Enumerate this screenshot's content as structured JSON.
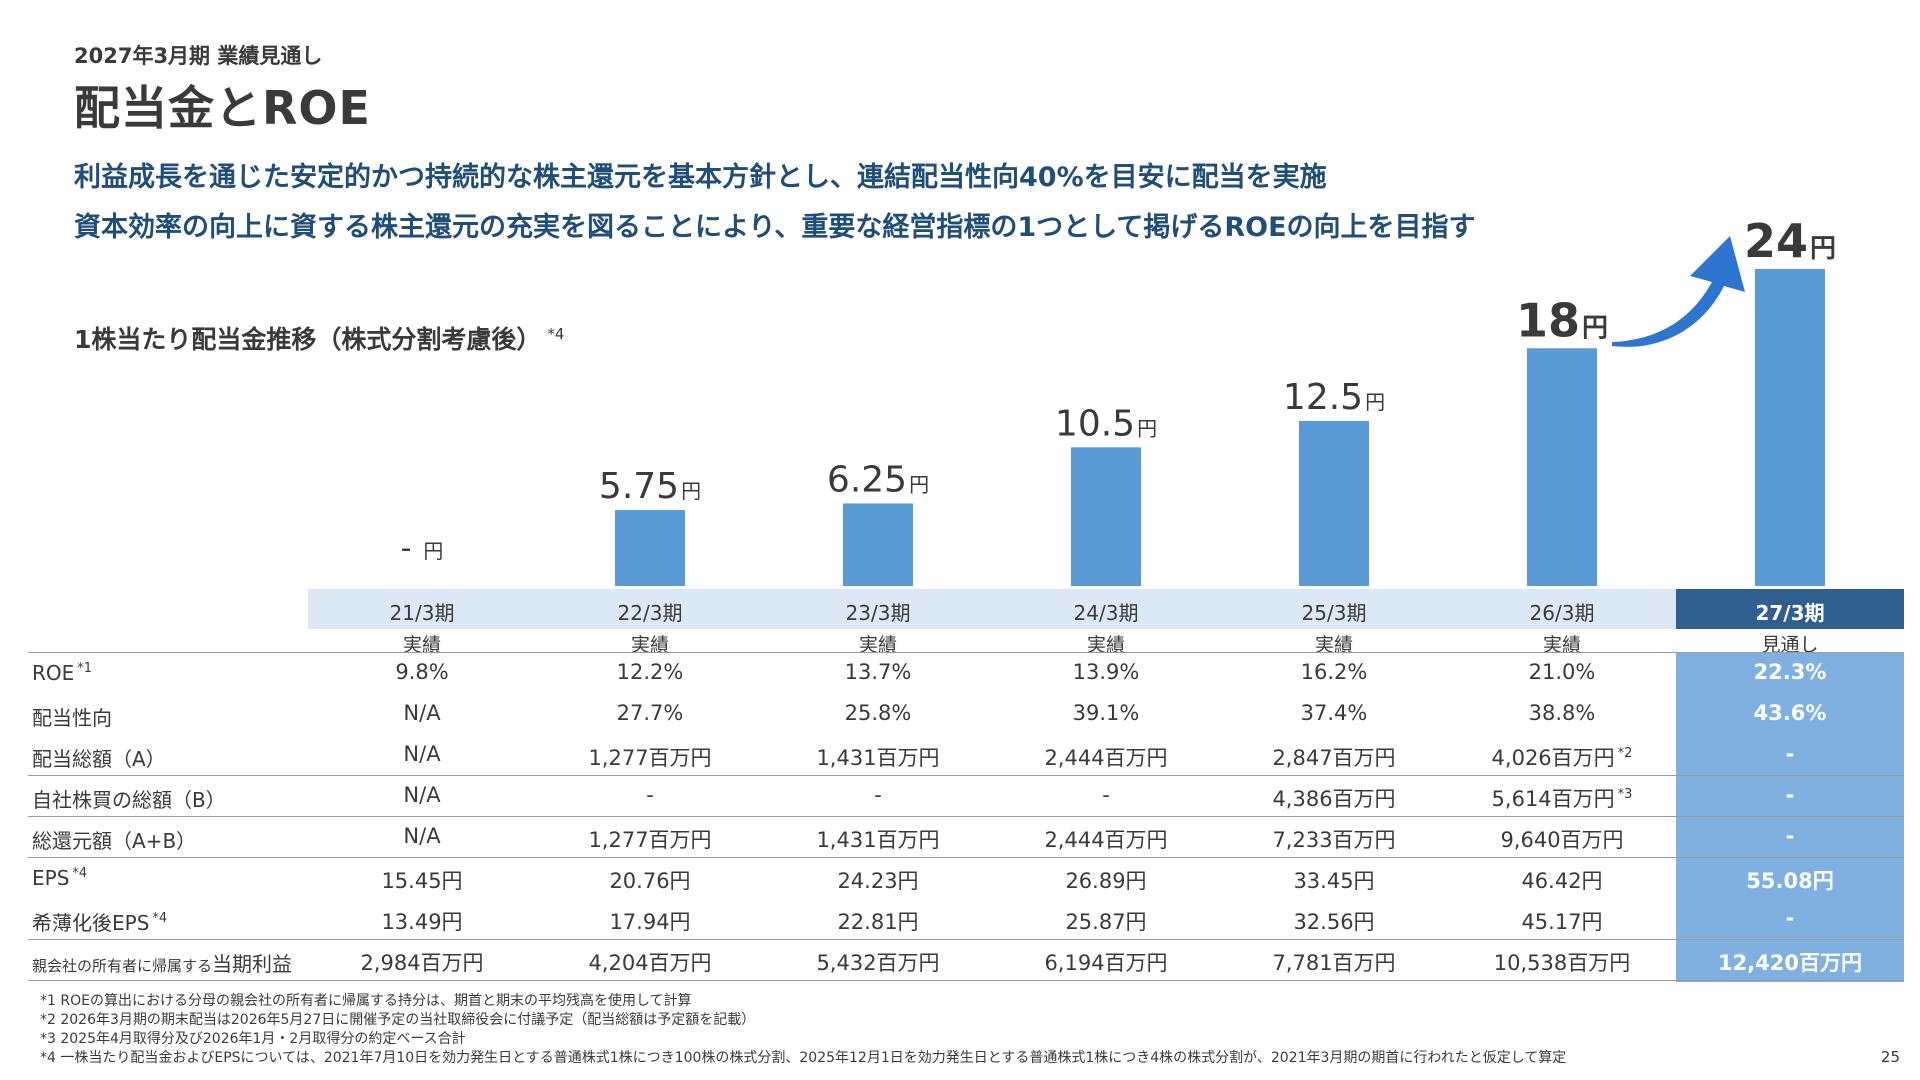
{
  "header": {
    "subtitle": "2027年3月期 業績見通し",
    "title": "配当金とROE",
    "lead1": "利益成長を通じた安定的かつ持続的な株主還元を基本方針とし、連結配当性向40%を目安に配当を実施",
    "lead2": "資本効率の向上に資する株主還元の充実を図ることにより、重要な経営指標の1つとして掲げるROEの向上を目指す"
  },
  "chart_data": {
    "type": "bar",
    "title": "1株当たり配当金推移（株式分割考慮後）",
    "title_note": "*4",
    "unit": "円",
    "categories": [
      "21/3期",
      "22/3期",
      "23/3期",
      "24/3期",
      "25/3期",
      "26/3期",
      "27/3期"
    ],
    "status": [
      "実績",
      "実績",
      "実績",
      "実績",
      "実績",
      "実績",
      "見通し"
    ],
    "values": [
      null,
      5.75,
      6.25,
      10.5,
      12.5,
      18,
      24
    ],
    "value_labels": [
      "-",
      "5.75",
      "6.25",
      "10.5",
      "12.5",
      "18",
      "24"
    ],
    "bold_labels": [
      false,
      false,
      false,
      false,
      false,
      true,
      true
    ],
    "ylim": [
      0,
      24
    ],
    "bar_color": "#5b9bd5",
    "arrow_color": "#2e75d0"
  },
  "table": {
    "rows": [
      {
        "label": "ROE",
        "note": "*1",
        "values": [
          "9.8%",
          "12.2%",
          "13.7%",
          "13.9%",
          "16.2%",
          "21.0%",
          "22.3%"
        ],
        "notes": [
          "",
          "",
          "",
          "",
          "",
          "",
          ""
        ]
      },
      {
        "label": "配当性向",
        "note": "",
        "values": [
          "N/A",
          "27.7%",
          "25.8%",
          "39.1%",
          "37.4%",
          "38.8%",
          "43.6%"
        ],
        "notes": [
          "",
          "",
          "",
          "",
          "",
          "",
          ""
        ]
      },
      {
        "label": "配当総額（A）",
        "note": "",
        "values": [
          "N/A",
          "1,277百万円",
          "1,431百万円",
          "2,444百万円",
          "2,847百万円",
          "4,026百万円",
          "-"
        ],
        "notes": [
          "",
          "",
          "",
          "",
          "",
          "*2",
          ""
        ]
      },
      {
        "label": "自社株買の総額（B）",
        "note": "",
        "values": [
          "N/A",
          "-",
          "-",
          "-",
          "4,386百万円",
          "5,614百万円",
          "-"
        ],
        "notes": [
          "",
          "",
          "",
          "",
          "",
          "*3",
          ""
        ]
      },
      {
        "label": "総還元額（A+B）",
        "note": "",
        "values": [
          "N/A",
          "1,277百万円",
          "1,431百万円",
          "2,444百万円",
          "7,233百万円",
          "9,640百万円",
          "-"
        ],
        "notes": [
          "",
          "",
          "",
          "",
          "",
          "",
          ""
        ]
      },
      {
        "label": "EPS",
        "note": "*4",
        "values": [
          "15.45円",
          "20.76円",
          "24.23円",
          "26.89円",
          "33.45円",
          "46.42円",
          "55.08円"
        ],
        "notes": [
          "",
          "",
          "",
          "",
          "",
          "",
          ""
        ]
      },
      {
        "label": "希薄化後EPS",
        "note": "*4",
        "values": [
          "13.49円",
          "17.94円",
          "22.81円",
          "25.87円",
          "32.56円",
          "45.17円",
          "-"
        ],
        "notes": [
          "",
          "",
          "",
          "",
          "",
          "",
          ""
        ]
      },
      {
        "label_small": "親会社の所有者に帰属する",
        "label": "当期利益",
        "note": "",
        "values": [
          "2,984百万円",
          "4,204百万円",
          "5,432百万円",
          "6,194百万円",
          "7,781百万円",
          "10,538百万円",
          "12,420百万円"
        ],
        "notes": [
          "",
          "",
          "",
          "",
          "",
          "",
          ""
        ]
      }
    ],
    "highlight_color": "#7fb0df",
    "header_color": "#dce9f5",
    "header_highlight_color": "#2f5f8f"
  },
  "footnotes": [
    "*1 ROEの算出における分母の親会社の所有者に帰属する持分は、期首と期末の平均残高を使用して計算",
    "*2 2026年3月期の期末配当は2026年5月27日に開催予定の当社取締役会に付議予定（配当総額は予定額を記載）",
    "*3 2025年4月取得分及び2026年1月・2月取得分の約定ベース合計",
    "*4 一株当たり配当金およびEPSについては、2021年7月10日を効力発生日とする普通株式1株につき100株の株式分割、2025年12月1日を効力発生日とする普通株式1株につき4株の株式分割が、2021年3月期の期首に行われたと仮定して算定"
  ],
  "page_number": "25"
}
